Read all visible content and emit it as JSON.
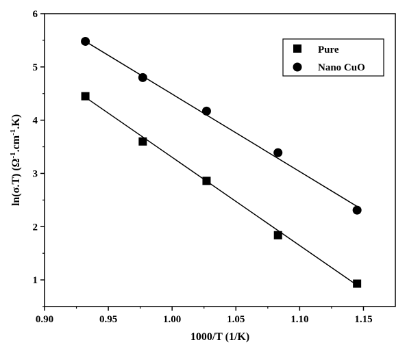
{
  "chart_data": {
    "type": "scatter",
    "xlabel": "1000/T (1/K)",
    "ylabel": {
      "prefix": "ln(σ.T) (Ω",
      "sup1": "-1",
      "mid": ".cm",
      "sup2": "-1",
      "suffix": ".K)"
    },
    "xlim": [
      0.9,
      1.175
    ],
    "ylim": [
      0.5,
      6
    ],
    "xticks": [
      0.9,
      0.95,
      1.0,
      1.05,
      1.1,
      1.15
    ],
    "xtick_labels": [
      "0.90",
      "0.95",
      "1.00",
      "1.05",
      "1.10",
      "1.15"
    ],
    "yticks": [
      1,
      2,
      3,
      4,
      5,
      6
    ],
    "ytick_labels": [
      "1",
      "2",
      "3",
      "4",
      "5",
      "6"
    ],
    "legend_position": "top-right",
    "series": [
      {
        "name": "Pure",
        "marker": "square",
        "x": [
          0.932,
          0.977,
          1.027,
          1.083,
          1.145
        ],
        "y": [
          4.45,
          3.6,
          2.86,
          1.84,
          0.93
        ],
        "fit": {
          "x": [
            0.932,
            1.145
          ],
          "y": [
            4.43,
            0.9
          ]
        }
      },
      {
        "name": "Nano CuO",
        "marker": "circle",
        "x": [
          0.932,
          0.977,
          1.027,
          1.083,
          1.145
        ],
        "y": [
          5.48,
          4.8,
          4.17,
          3.39,
          2.31
        ],
        "fit": {
          "x": [
            0.932,
            1.145
          ],
          "y": [
            5.48,
            2.38
          ]
        }
      }
    ],
    "colors": {
      "marker": "#000000",
      "line": "#000000"
    }
  }
}
